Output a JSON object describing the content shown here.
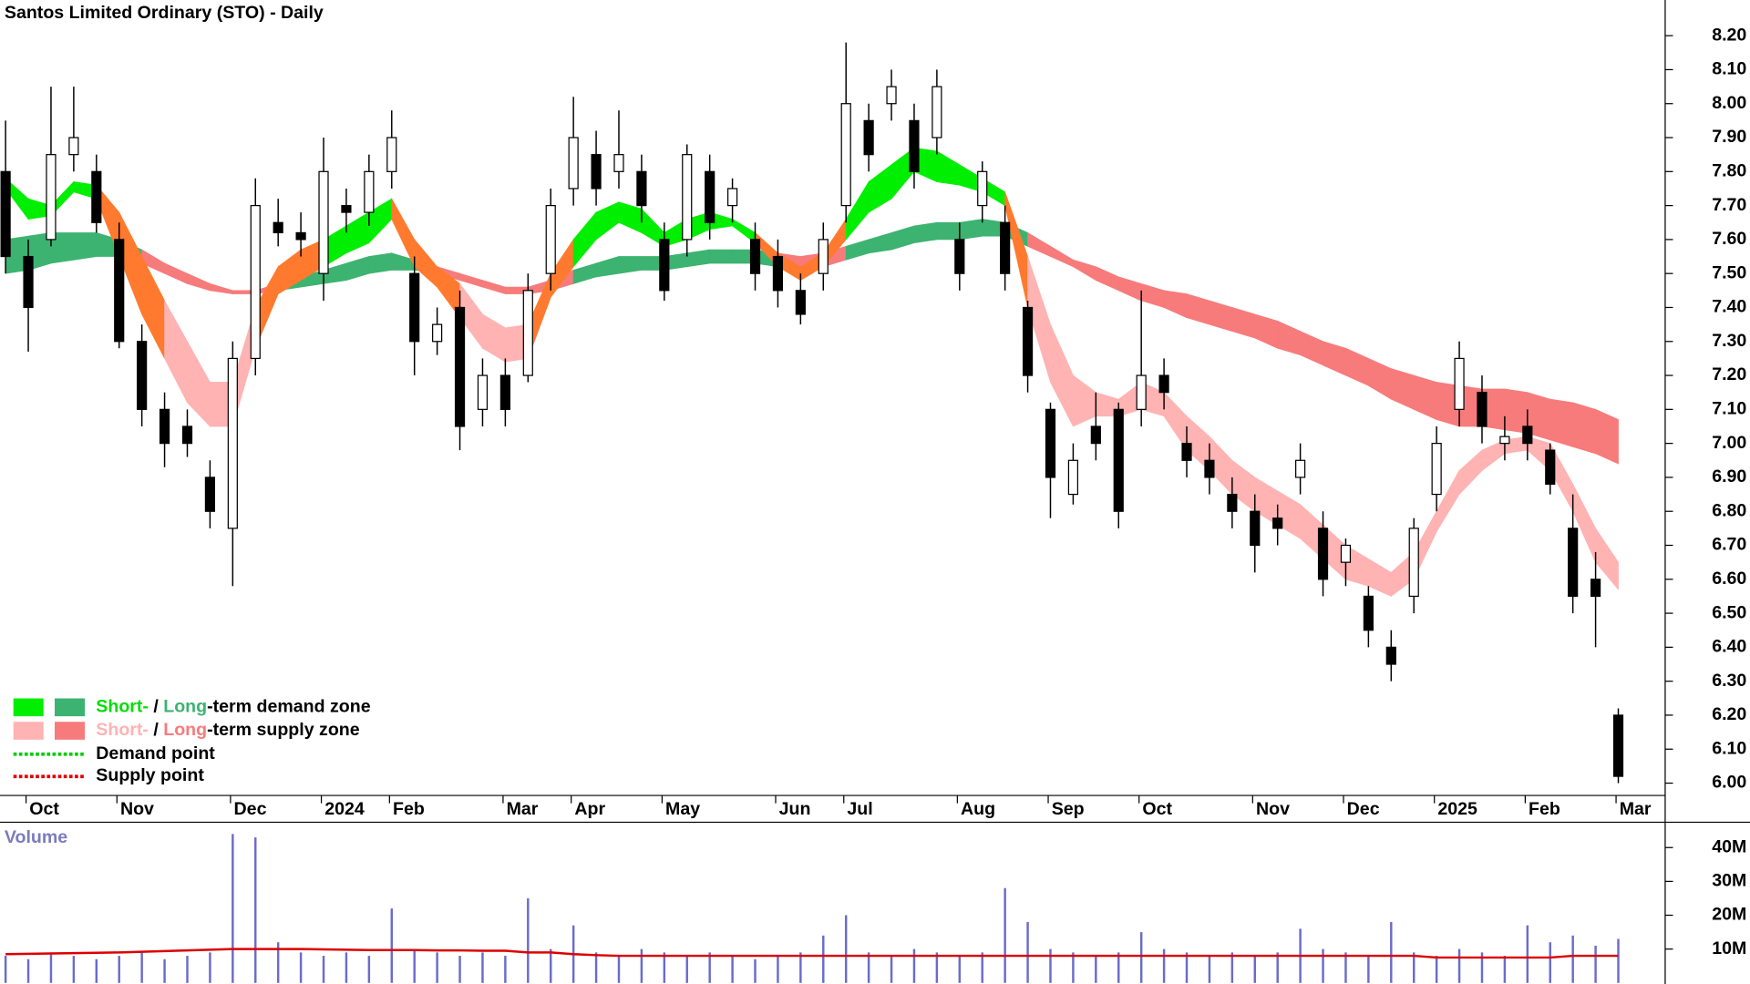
{
  "chart_data": {
    "type": "candlestick",
    "title": "Santos Limited Ordinary (STO) - Daily",
    "categories": [
      null,
      "Oct",
      null,
      null,
      null,
      "Nov",
      null,
      null,
      null,
      null,
      "Dec",
      null,
      null,
      null,
      "2024",
      null,
      null,
      "Feb",
      null,
      null,
      null,
      null,
      "Mar",
      null,
      null,
      "Apr",
      null,
      null,
      null,
      "May",
      null,
      null,
      null,
      null,
      "Jun",
      null,
      null,
      "Jul",
      null,
      null,
      null,
      null,
      "Aug",
      null,
      null,
      null,
      "Sep",
      null,
      null,
      null,
      "Oct",
      null,
      null,
      null,
      null,
      "Nov",
      null,
      null,
      null,
      "Dec",
      null,
      null,
      null,
      "2025",
      null,
      null,
      null,
      "Feb",
      null,
      null,
      null,
      "Mar"
    ],
    "open": [
      7.8,
      7.55,
      7.6,
      7.85,
      7.8,
      7.6,
      7.3,
      7.1,
      7.05,
      6.9,
      6.75,
      7.25,
      7.65,
      7.62,
      7.5,
      7.7,
      7.68,
      7.8,
      7.5,
      7.3,
      7.4,
      7.1,
      7.2,
      7.2,
      7.5,
      7.75,
      7.85,
      7.8,
      7.8,
      7.6,
      7.6,
      7.8,
      7.7,
      7.6,
      7.55,
      7.45,
      7.5,
      7.7,
      7.95,
      8.0,
      7.95,
      7.9,
      7.6,
      7.7,
      7.65,
      7.4,
      7.1,
      6.85,
      7.05,
      7.1,
      7.1,
      7.2,
      7.0,
      6.95,
      6.85,
      6.8,
      6.78,
      6.9,
      6.75,
      6.65,
      6.55,
      6.4,
      6.55,
      6.85,
      7.1,
      7.15,
      7.0,
      7.05,
      6.98,
      6.75,
      6.6,
      6.2
    ],
    "high": [
      7.95,
      7.6,
      8.05,
      8.05,
      7.85,
      7.65,
      7.35,
      7.15,
      7.1,
      6.95,
      7.3,
      7.78,
      7.72,
      7.68,
      7.9,
      7.75,
      7.85,
      7.98,
      7.55,
      7.4,
      7.45,
      7.25,
      7.25,
      7.5,
      7.75,
      8.02,
      7.92,
      7.98,
      7.85,
      7.65,
      7.88,
      7.85,
      7.78,
      7.65,
      7.6,
      7.5,
      7.65,
      8.18,
      8.0,
      8.1,
      8.0,
      8.1,
      7.65,
      7.83,
      7.7,
      7.42,
      7.12,
      7.0,
      7.15,
      7.12,
      7.45,
      7.25,
      7.05,
      7.0,
      6.9,
      6.85,
      6.82,
      7.0,
      6.8,
      6.72,
      6.58,
      6.45,
      6.78,
      7.05,
      7.3,
      7.2,
      7.08,
      7.1,
      7.0,
      6.85,
      6.68,
      6.22
    ],
    "low": [
      7.5,
      7.27,
      7.58,
      7.8,
      7.62,
      7.28,
      7.05,
      6.93,
      6.96,
      6.75,
      6.58,
      7.2,
      7.58,
      7.55,
      7.42,
      7.62,
      7.64,
      7.75,
      7.2,
      7.26,
      6.98,
      7.05,
      7.05,
      7.18,
      7.45,
      7.7,
      7.7,
      7.75,
      7.65,
      7.42,
      7.55,
      7.6,
      7.65,
      7.45,
      7.4,
      7.35,
      7.45,
      7.65,
      7.8,
      7.95,
      7.75,
      7.85,
      7.45,
      7.65,
      7.45,
      7.15,
      6.78,
      6.82,
      6.95,
      6.75,
      7.05,
      7.1,
      6.9,
      6.85,
      6.75,
      6.62,
      6.7,
      6.85,
      6.55,
      6.58,
      6.4,
      6.3,
      6.5,
      6.8,
      7.05,
      7.0,
      6.95,
      6.95,
      6.85,
      6.5,
      6.4,
      6.0
    ],
    "close": [
      7.55,
      7.4,
      7.85,
      7.9,
      7.65,
      7.3,
      7.1,
      7.0,
      7.0,
      6.8,
      7.25,
      7.7,
      7.62,
      7.6,
      7.8,
      7.68,
      7.8,
      7.9,
      7.3,
      7.35,
      7.05,
      7.2,
      7.1,
      7.45,
      7.7,
      7.9,
      7.75,
      7.85,
      7.7,
      7.45,
      7.85,
      7.65,
      7.75,
      7.5,
      7.45,
      7.38,
      7.6,
      8.0,
      7.85,
      8.05,
      7.8,
      8.05,
      7.5,
      7.8,
      7.5,
      7.2,
      6.9,
      6.95,
      7.0,
      6.8,
      7.2,
      7.15,
      6.95,
      6.9,
      6.8,
      6.7,
      6.75,
      6.95,
      6.6,
      6.7,
      6.45,
      6.35,
      6.75,
      7.0,
      7.25,
      7.05,
      7.02,
      7.0,
      6.88,
      6.55,
      6.55,
      6.02
    ],
    "zones": {
      "short_upper": [
        7.78,
        7.72,
        7.7,
        7.77,
        7.76,
        7.68,
        7.55,
        7.42,
        7.3,
        7.18,
        7.18,
        7.4,
        7.52,
        7.57,
        7.6,
        7.64,
        7.68,
        7.72,
        7.6,
        7.52,
        7.47,
        7.38,
        7.34,
        7.35,
        7.5,
        7.6,
        7.68,
        7.71,
        7.69,
        7.62,
        7.66,
        7.68,
        7.66,
        7.62,
        7.56,
        7.52,
        7.56,
        7.66,
        7.77,
        7.82,
        7.87,
        7.86,
        7.82,
        7.78,
        7.74,
        7.55,
        7.35,
        7.2,
        7.15,
        7.13,
        7.18,
        7.15,
        7.08,
        7.02,
        6.95,
        6.9,
        6.86,
        6.82,
        6.76,
        6.7,
        6.66,
        6.62,
        6.68,
        6.8,
        6.92,
        6.98,
        7.01,
        7.02,
        7.0,
        6.88,
        6.75,
        6.65
      ],
      "short_lower": [
        7.75,
        7.66,
        7.67,
        7.74,
        7.72,
        7.55,
        7.38,
        7.25,
        7.12,
        7.05,
        7.05,
        7.28,
        7.44,
        7.48,
        7.52,
        7.56,
        7.59,
        7.66,
        7.52,
        7.46,
        7.37,
        7.28,
        7.24,
        7.25,
        7.43,
        7.52,
        7.6,
        7.65,
        7.62,
        7.58,
        7.6,
        7.63,
        7.64,
        7.59,
        7.52,
        7.48,
        7.52,
        7.6,
        7.68,
        7.72,
        7.8,
        7.77,
        7.76,
        7.74,
        7.7,
        7.4,
        7.18,
        7.05,
        7.08,
        7.08,
        7.1,
        7.08,
        6.98,
        6.92,
        6.85,
        6.8,
        6.76,
        6.72,
        6.66,
        6.6,
        6.58,
        6.55,
        6.6,
        6.74,
        6.85,
        6.92,
        6.97,
        6.98,
        6.92,
        6.8,
        6.65,
        6.57
      ],
      "long_upper": [
        7.6,
        7.61,
        7.62,
        7.62,
        7.62,
        7.6,
        7.57,
        7.53,
        7.5,
        7.47,
        7.45,
        7.45,
        7.47,
        7.49,
        7.51,
        7.53,
        7.55,
        7.56,
        7.54,
        7.52,
        7.5,
        7.48,
        7.46,
        7.46,
        7.48,
        7.51,
        7.53,
        7.55,
        7.55,
        7.55,
        7.56,
        7.57,
        7.57,
        7.57,
        7.56,
        7.55,
        7.56,
        7.58,
        7.6,
        7.62,
        7.64,
        7.65,
        7.65,
        7.66,
        7.65,
        7.62,
        7.58,
        7.54,
        7.52,
        7.49,
        7.47,
        7.45,
        7.44,
        7.42,
        7.4,
        7.38,
        7.36,
        7.33,
        7.3,
        7.28,
        7.25,
        7.22,
        7.2,
        7.18,
        7.17,
        7.16,
        7.16,
        7.15,
        7.13,
        7.12,
        7.1,
        7.07
      ],
      "long_lower": [
        7.5,
        7.51,
        7.53,
        7.54,
        7.55,
        7.55,
        7.53,
        7.5,
        7.47,
        7.45,
        7.44,
        7.44,
        7.45,
        7.46,
        7.47,
        7.48,
        7.5,
        7.51,
        7.51,
        7.5,
        7.48,
        7.46,
        7.44,
        7.44,
        7.45,
        7.47,
        7.49,
        7.5,
        7.51,
        7.51,
        7.52,
        7.53,
        7.53,
        7.53,
        7.52,
        7.51,
        7.52,
        7.54,
        7.56,
        7.57,
        7.59,
        7.6,
        7.6,
        7.61,
        7.61,
        7.58,
        7.55,
        7.52,
        7.48,
        7.45,
        7.42,
        7.4,
        7.37,
        7.35,
        7.33,
        7.31,
        7.28,
        7.26,
        7.23,
        7.2,
        7.17,
        7.13,
        7.1,
        7.07,
        7.05,
        7.05,
        7.04,
        7.03,
        7.01,
        6.99,
        6.97,
        6.94
      ]
    },
    "overlap_color": "#ff7a2e",
    "up_color": "#ffffff",
    "down_color": "#000000",
    "ylim": [
      5.967,
      8.305
    ],
    "yticks": [
      {
        "value": 6.0,
        "label": "6.00"
      },
      {
        "value": 6.1,
        "label": "6.10"
      },
      {
        "value": 6.2,
        "label": "6.20"
      },
      {
        "value": 6.3,
        "label": "6.30"
      },
      {
        "value": 6.4,
        "label": "6.40"
      },
      {
        "value": 6.5,
        "label": "6.50"
      },
      {
        "value": 6.6,
        "label": "6.60"
      },
      {
        "value": 6.7,
        "label": "6.70"
      },
      {
        "value": 6.8,
        "label": "6.80"
      },
      {
        "value": 6.9,
        "label": "6.90"
      },
      {
        "value": 7.0,
        "label": "7.00"
      },
      {
        "value": 7.1,
        "label": "7.10"
      },
      {
        "value": 7.2,
        "label": "7.20"
      },
      {
        "value": 7.3,
        "label": "7.30"
      },
      {
        "value": 7.4,
        "label": "7.40"
      },
      {
        "value": 7.5,
        "label": "7.50"
      },
      {
        "value": 7.6,
        "label": "7.60"
      },
      {
        "value": 7.7,
        "label": "7.70"
      },
      {
        "value": 7.8,
        "label": "7.80"
      },
      {
        "value": 7.9,
        "label": "7.90"
      },
      {
        "value": 8.0,
        "label": "8.00"
      },
      {
        "value": 8.1,
        "label": "8.10"
      },
      {
        "value": 8.2,
        "label": "8.20"
      }
    ],
    "legend": [
      {
        "swatch_colors": [
          "#00ee00",
          "#3cb371"
        ],
        "parts": [
          {
            "text": "Short-",
            "color": "#00dd00"
          },
          {
            "text": " / ",
            "color": "#000000"
          },
          {
            "text": "Long",
            "color": "#3cb371"
          },
          {
            "text": "-term demand zone",
            "color": "#000000"
          }
        ]
      },
      {
        "swatch_colors": [
          "#ffb3b3",
          "#f77b7b"
        ],
        "parts": [
          {
            "text": "Short-",
            "color": "#ffb3b3"
          },
          {
            "text": " / ",
            "color": "#000000"
          },
          {
            "text": "Long",
            "color": "#f77b7b"
          },
          {
            "text": "-term supply zone",
            "color": "#000000"
          }
        ]
      },
      {
        "line_color": "#00cc00",
        "parts": [
          {
            "text": "Demand point",
            "color": "#000000"
          }
        ]
      },
      {
        "line_color": "#dd0000",
        "parts": [
          {
            "text": "Supply point",
            "color": "#000000"
          }
        ]
      }
    ],
    "volume": {
      "label": "Volume",
      "color": "#6b6bcc",
      "avg_color": "#dd0000",
      "values": [
        8000000,
        7000000,
        9000000,
        8000000,
        7000000,
        8000000,
        9000000,
        7000000,
        8000000,
        9000000,
        44000000,
        43000000,
        12000000,
        9000000,
        8000000,
        9000000,
        8000000,
        22000000,
        10000000,
        9000000,
        8000000,
        9000000,
        8000000,
        25000000,
        10000000,
        17000000,
        9000000,
        8000000,
        10000000,
        9000000,
        8000000,
        9000000,
        8000000,
        7000000,
        8000000,
        9000000,
        14000000,
        20000000,
        9000000,
        8000000,
        10000000,
        9000000,
        8000000,
        9000000,
        28000000,
        18000000,
        10000000,
        9000000,
        8000000,
        9000000,
        15000000,
        10000000,
        9000000,
        8000000,
        9000000,
        8000000,
        9000000,
        16000000,
        10000000,
        9000000,
        8000000,
        18000000,
        9000000,
        8000000,
        10000000,
        9000000,
        8000000,
        17000000,
        12000000,
        14000000,
        11000000,
        13000000
      ],
      "average": [
        8500000,
        8600000,
        8700000,
        8800000,
        8900000,
        9000000,
        9200000,
        9400000,
        9600000,
        9800000,
        10000000,
        10000000,
        10000000,
        10000000,
        9900000,
        9800000,
        9700000,
        9700000,
        9700000,
        9600000,
        9600000,
        9500000,
        9500000,
        9000000,
        9000000,
        8500000,
        8200000,
        8000000,
        8000000,
        8000000,
        8000000,
        8000000,
        8000000,
        8000000,
        8000000,
        8000000,
        8000000,
        8000000,
        8000000,
        8000000,
        8000000,
        8000000,
        8000000,
        8000000,
        8000000,
        8000000,
        8000000,
        8000000,
        8000000,
        8000000,
        8000000,
        8000000,
        8000000,
        8000000,
        8000000,
        8000000,
        8000000,
        8000000,
        8000000,
        8000000,
        8000000,
        8000000,
        8000000,
        7500000,
        7500000,
        7500000,
        7500000,
        7500000,
        7500000,
        8000000,
        8000000,
        8000000
      ],
      "ylim": [
        0,
        46500000
      ],
      "yticks": [
        {
          "value": 10000000,
          "label": "10M"
        },
        {
          "value": 20000000,
          "label": "20M"
        },
        {
          "value": 30000000,
          "label": "30M"
        },
        {
          "value": 40000000,
          "label": "40M"
        }
      ]
    }
  }
}
